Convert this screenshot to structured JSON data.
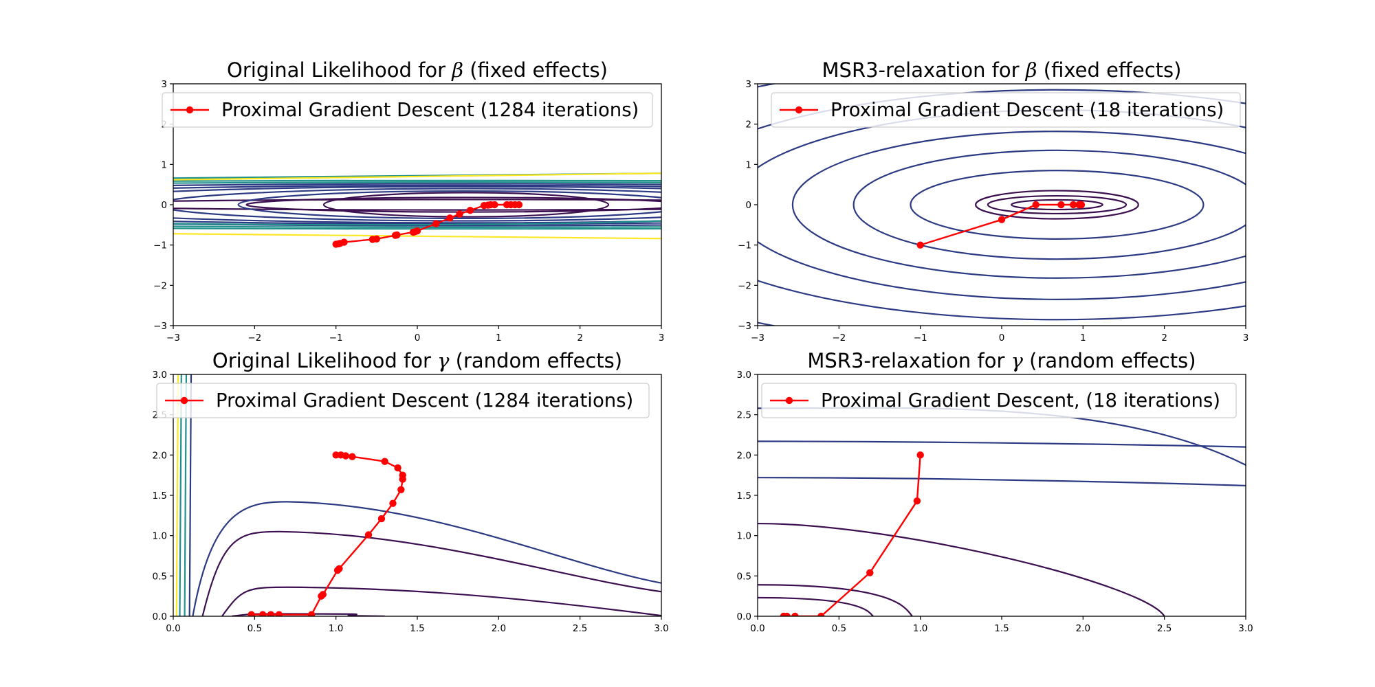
{
  "colors": {
    "path": "#ff0000",
    "contour_dark": "#3b0f50",
    "contour_mid": "#2c3a83",
    "contour_teal": "#21918c",
    "contour_yellow": "#fde725",
    "axis": "#000000"
  },
  "chart_data": [
    {
      "type": "line",
      "title_prefix": "Original Likelihood for ",
      "title_symbol": "β",
      "title_suffix": " (fixed effects)",
      "xlim": [
        -3,
        3
      ],
      "ylim": [
        -3,
        3
      ],
      "xticks": [
        "−3",
        "−2",
        "−1",
        "0",
        "1",
        "2",
        "3"
      ],
      "yticks": [
        "−3",
        "−2",
        "−1",
        "0",
        "1",
        "2",
        "3"
      ],
      "grid": false,
      "legend_position": "top",
      "series": [
        {
          "name": "Proximal Gradient Descent (1284 iterations)",
          "marker": "circle",
          "x": [
            -1.0,
            -0.97,
            -0.95,
            -0.9,
            -0.55,
            -0.5,
            -0.27,
            -0.25,
            -0.05,
            -0.03,
            0.0,
            0.23,
            0.4,
            0.52,
            0.65,
            0.82,
            0.87,
            0.9,
            0.95,
            1.1,
            1.15,
            1.2,
            1.25
          ],
          "y": [
            -0.98,
            -0.97,
            -0.96,
            -0.93,
            -0.86,
            -0.85,
            -0.76,
            -0.75,
            -0.68,
            -0.67,
            -0.65,
            -0.47,
            -0.33,
            -0.23,
            -0.14,
            -0.02,
            -0.01,
            0.0,
            0.0,
            0.0,
            0.0,
            0.0,
            0.0
          ]
        }
      ]
    },
    {
      "type": "line",
      "title_prefix": "MSR3-relaxation for ",
      "title_symbol": "β",
      "title_suffix": " (fixed effects)",
      "xlim": [
        -3,
        3
      ],
      "ylim": [
        -3,
        3
      ],
      "xticks": [
        "−3",
        "−2",
        "−1",
        "0",
        "1",
        "2",
        "3"
      ],
      "yticks": [
        "−3",
        "−2",
        "−1",
        "0",
        "1",
        "2",
        "3"
      ],
      "grid": false,
      "legend_position": "top",
      "series": [
        {
          "name": "Proximal Gradient Descent (18 iterations)",
          "marker": "circle",
          "x": [
            -1.0,
            0.0,
            0.42,
            0.73,
            0.88,
            0.95,
            0.97,
            0.98
          ],
          "y": [
            -1.0,
            -0.37,
            0.0,
            0.0,
            0.0,
            0.0,
            0.0,
            0.0
          ]
        }
      ]
    },
    {
      "type": "line",
      "title_prefix": "Original Likelihood for ",
      "title_symbol": "γ",
      "title_suffix": " (random effects)",
      "xlim": [
        0,
        3
      ],
      "ylim": [
        0,
        3
      ],
      "xticks": [
        "0.0",
        "0.5",
        "1.0",
        "1.5",
        "2.0",
        "2.5",
        "3.0"
      ],
      "yticks": [
        "0.0",
        "0.5",
        "1.0",
        "1.5",
        "2.0",
        "2.5",
        "3.0"
      ],
      "grid": false,
      "legend_position": "top",
      "series": [
        {
          "name": "Proximal Gradient Descent (1284 iterations)",
          "marker": "circle",
          "x": [
            1.0,
            1.03,
            1.06,
            1.1,
            1.3,
            1.38,
            1.41,
            1.41,
            1.4,
            1.35,
            1.28,
            1.2,
            1.02,
            1.01,
            0.92,
            0.91,
            0.85,
            0.65,
            0.6,
            0.55,
            0.48
          ],
          "y": [
            2.0,
            2.0,
            1.99,
            1.98,
            1.92,
            1.84,
            1.75,
            1.7,
            1.57,
            1.4,
            1.21,
            1.01,
            0.59,
            0.57,
            0.27,
            0.25,
            0.02,
            0.02,
            0.02,
            0.02,
            0.02
          ]
        }
      ]
    },
    {
      "type": "line",
      "title_prefix": "MSR3-relaxation for ",
      "title_symbol": "γ",
      "title_suffix": " (random effects)",
      "xlim": [
        0,
        3
      ],
      "ylim": [
        0,
        3
      ],
      "xticks": [
        "0.0",
        "0.5",
        "1.0",
        "1.5",
        "2.0",
        "2.5",
        "3.0"
      ],
      "yticks": [
        "0.0",
        "0.5",
        "1.0",
        "1.5",
        "2.0",
        "2.5",
        "3.0"
      ],
      "grid": false,
      "legend_position": "top",
      "series": [
        {
          "name": "Proximal Gradient Descent, (18 iterations)",
          "marker": "circle",
          "x": [
            1.0,
            0.98,
            0.69,
            0.39,
            0.23,
            0.18,
            0.16
          ],
          "y": [
            2.0,
            1.43,
            0.54,
            0.0,
            0.0,
            0.0,
            0.0
          ]
        }
      ]
    }
  ]
}
